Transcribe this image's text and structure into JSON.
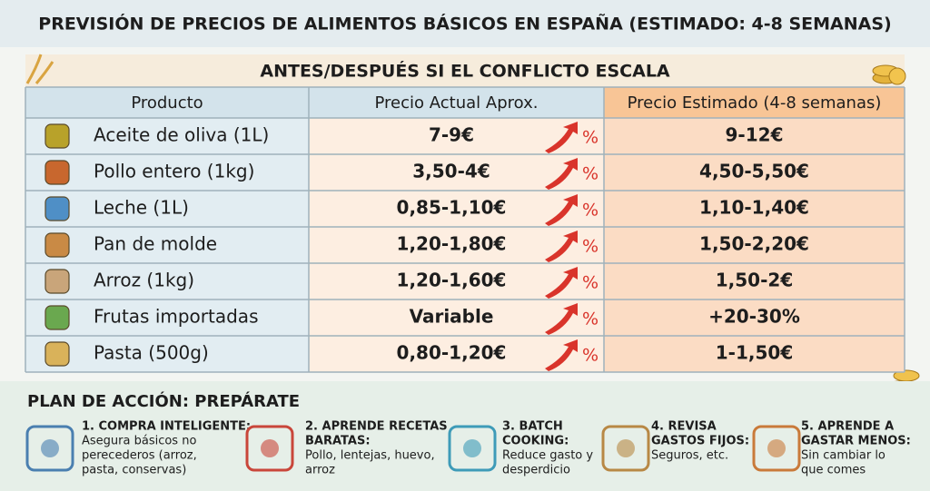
{
  "header": {
    "title": "PREVISIÓN DE PRECIOS DE ALIMENTOS BÁSICOS EN ESPAÑA (ESTIMADO: 4-8 SEMANAS)"
  },
  "table": {
    "subtitle": "ANTES/DESPUÉS SI EL CONFLICTO ESCALA",
    "columns": [
      "Producto",
      "Precio Actual Aprox.",
      "Precio Estimado (4-8 semanas)"
    ],
    "rows": [
      {
        "product": "Aceite de oliva (1L)",
        "current": "7-9€",
        "change": "%",
        "estimated": "9-12€"
      },
      {
        "product": "Pollo entero (1kg)",
        "current": "3,50-4€",
        "change": "%",
        "estimated": "4,50-5,50€"
      },
      {
        "product": "Leche (1L)",
        "current": "0,85-1,10€",
        "change": "%",
        "estimated": "1,10-1,40€"
      },
      {
        "product": "Pan de molde",
        "current": "1,20-1,80€",
        "change": "%",
        "estimated": "1,50-2,20€"
      },
      {
        "product": "Arroz (1kg)",
        "current": "1,20-1,60€",
        "change": "%",
        "estimated": "1,50-2€"
      },
      {
        "product": "Frutas importadas",
        "current": "Variable",
        "change": "%",
        "estimated": "+20-30%"
      },
      {
        "product": "Pasta (500g)",
        "current": "0,80-1,20€",
        "change": "%",
        "estimated": "1-1,50€"
      }
    ]
  },
  "plan": {
    "title": "PLAN DE ACCIÓN: PREPÁRATE",
    "items": [
      {
        "title_lines": [
          "1. COMPRA INTELIGENTE:"
        ],
        "text_lines": [
          "Asegura básicos no",
          "perecederos (arroz,",
          "pasta, conservas)"
        ]
      },
      {
        "title_lines": [
          "2. APRENDE RECETAS",
          "BARATAS:"
        ],
        "text_lines": [
          "Pollo, lentejas, huevo,",
          "arroz"
        ]
      },
      {
        "title_lines": [
          "3. BATCH",
          "COOKING:"
        ],
        "text_lines": [
          "Reduce gasto y",
          "desperdicio"
        ]
      },
      {
        "title_lines": [
          "4. REVISA",
          "GASTOS FIJOS:"
        ],
        "text_lines": [
          "Seguros, etc."
        ]
      },
      {
        "title_lines": [
          "5. APRENDE A",
          "GASTAR MENOS:"
        ],
        "text_lines": [
          "Sin cambiar lo",
          "que comes"
        ]
      }
    ]
  }
}
